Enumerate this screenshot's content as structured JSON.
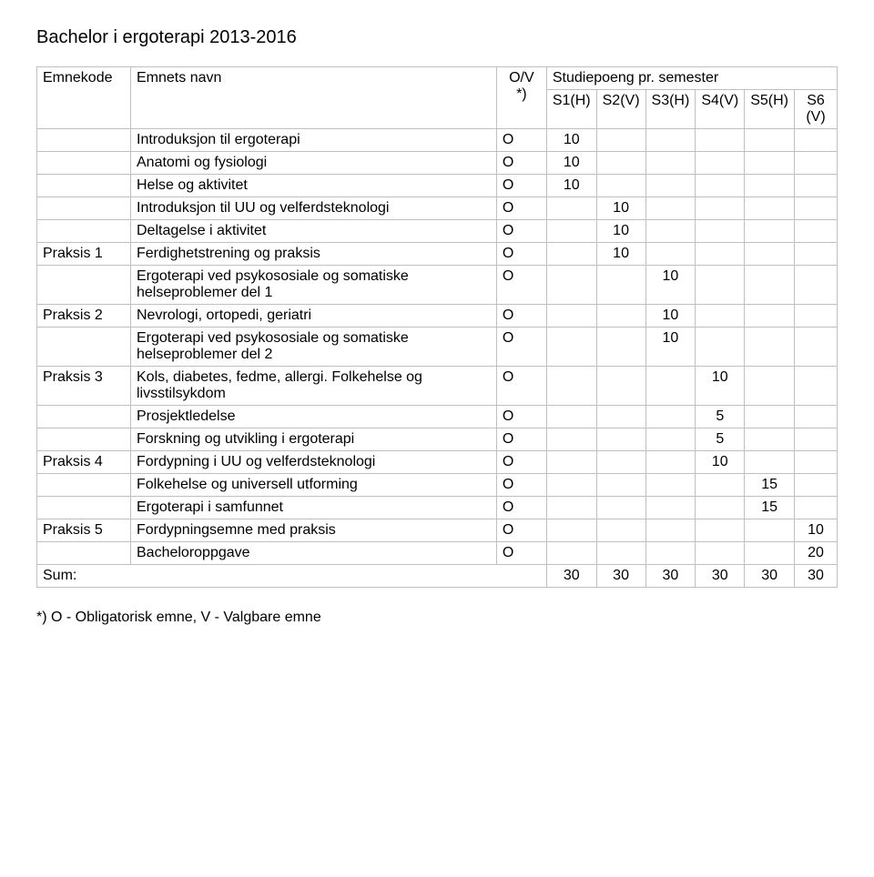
{
  "title": "Bachelor i ergoterapi 2013-2016",
  "headers": {
    "code": "Emnekode",
    "name": "Emnets navn",
    "ov": "O/V *)",
    "sp": "Studiepoeng pr. semester",
    "sem": [
      "S1(H)",
      "S2(V)",
      "S3(H)",
      "S4(V)",
      "S5(H)",
      "S6 (V)"
    ]
  },
  "rows": [
    {
      "code": "",
      "name": "Introduksjon til ergoterapi",
      "ov": "O",
      "vals": [
        "10",
        "",
        "",
        "",
        "",
        ""
      ]
    },
    {
      "code": "",
      "name": "Anatomi og fysiologi",
      "ov": "O",
      "vals": [
        "10",
        "",
        "",
        "",
        "",
        ""
      ]
    },
    {
      "code": "",
      "name": "Helse og aktivitet",
      "ov": "O",
      "vals": [
        "10",
        "",
        "",
        "",
        "",
        ""
      ]
    },
    {
      "code": "",
      "name": "Introduksjon til UU og velferdsteknologi",
      "ov": "O",
      "vals": [
        "",
        "10",
        "",
        "",
        "",
        ""
      ]
    },
    {
      "code": "",
      "name": "Deltagelse i aktivitet",
      "ov": "O",
      "vals": [
        "",
        "10",
        "",
        "",
        "",
        ""
      ]
    },
    {
      "code": "Praksis 1",
      "name": "Ferdighetstrening og praksis",
      "ov": "O",
      "vals": [
        "",
        "10",
        "",
        "",
        "",
        ""
      ]
    },
    {
      "code": "",
      "name": "Ergoterapi ved psykososiale og somatiske helseproblemer del 1",
      "ov": "O",
      "vals": [
        "",
        "",
        "10",
        "",
        "",
        ""
      ]
    },
    {
      "code": "Praksis 2",
      "name": "Nevrologi, ortopedi, geriatri",
      "ov": "O",
      "vals": [
        "",
        "",
        "10",
        "",
        "",
        ""
      ]
    },
    {
      "code": "",
      "name": "Ergoterapi ved psykososiale og somatiske helseproblemer del 2",
      "ov": "O",
      "vals": [
        "",
        "",
        "10",
        "",
        "",
        ""
      ]
    },
    {
      "code": "Praksis 3",
      "name": "Kols, diabetes, fedme, allergi. Folkehelse og livsstilsykdom",
      "ov": "O",
      "vals": [
        "",
        "",
        "",
        "10",
        "",
        ""
      ]
    },
    {
      "code": "",
      "name": "Prosjektledelse",
      "ov": "O",
      "vals": [
        "",
        "",
        "",
        "5",
        "",
        ""
      ]
    },
    {
      "code": "",
      "name": "Forskning og utvikling i ergoterapi",
      "ov": "O",
      "vals": [
        "",
        "",
        "",
        "5",
        "",
        ""
      ]
    },
    {
      "code": "Praksis 4",
      "name": "Fordypning i UU og velferdsteknologi",
      "ov": "O",
      "vals": [
        "",
        "",
        "",
        "10",
        "",
        ""
      ]
    },
    {
      "code": "",
      "name": "Folkehelse og universell utforming",
      "ov": "O",
      "vals": [
        "",
        "",
        "",
        "",
        "15",
        ""
      ]
    },
    {
      "code": "",
      "name": "Ergoterapi i samfunnet",
      "ov": "O",
      "vals": [
        "",
        "",
        "",
        "",
        "15",
        ""
      ]
    },
    {
      "code": "Praksis 5",
      "name": "Fordypningsemne med praksis",
      "ov": "O",
      "vals": [
        "",
        "",
        "",
        "",
        "",
        "10"
      ]
    },
    {
      "code": "",
      "name": "Bacheloroppgave",
      "ov": "O",
      "vals": [
        "",
        "",
        "",
        "",
        "",
        "20"
      ]
    }
  ],
  "sum": {
    "label": "Sum:",
    "vals": [
      "30",
      "30",
      "30",
      "30",
      "30",
      "30"
    ]
  },
  "footnote": "*) O - Obligatorisk emne, V - Valgbare emne"
}
